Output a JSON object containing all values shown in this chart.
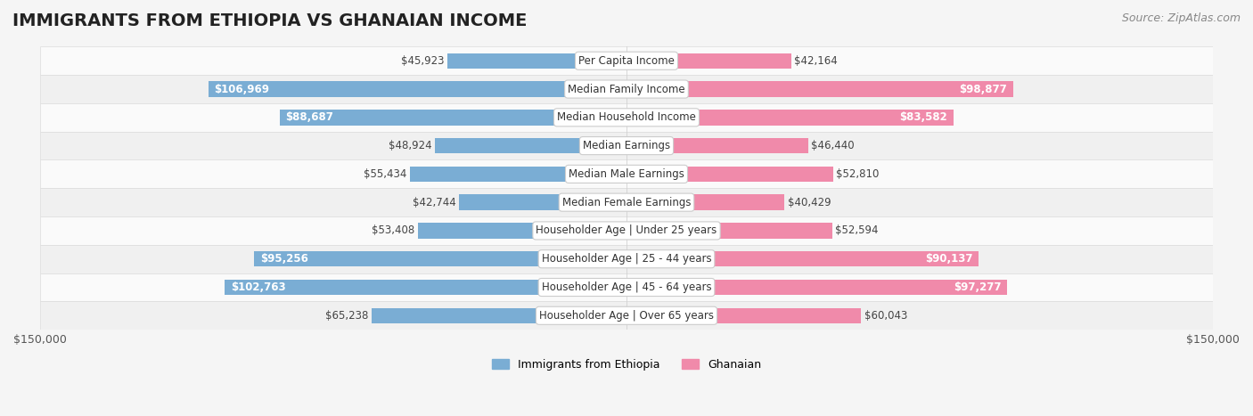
{
  "title": "IMMIGRANTS FROM ETHIOPIA VS GHANAIAN INCOME",
  "source": "Source: ZipAtlas.com",
  "categories": [
    "Per Capita Income",
    "Median Family Income",
    "Median Household Income",
    "Median Earnings",
    "Median Male Earnings",
    "Median Female Earnings",
    "Householder Age | Under 25 years",
    "Householder Age | 25 - 44 years",
    "Householder Age | 45 - 64 years",
    "Householder Age | Over 65 years"
  ],
  "ethiopia_values": [
    45923,
    106969,
    88687,
    48924,
    55434,
    42744,
    53408,
    95256,
    102763,
    65238
  ],
  "ghana_values": [
    42164,
    98877,
    83582,
    46440,
    52810,
    40429,
    52594,
    90137,
    97277,
    60043
  ],
  "ethiopia_color": "#7aadd4",
  "ghana_color": "#f08aaa",
  "ethiopia_color_dark": "#4a86c0",
  "ghana_color_dark": "#e85585",
  "bar_height": 0.55,
  "xlim": 150000,
  "xlabel_left": "$150,000",
  "xlabel_right": "$150,000",
  "background_color": "#f5f5f5",
  "row_bg_light": "#fafafa",
  "row_bg_dark": "#f0f0f0",
  "label_bg_color": "#ffffff",
  "label_border_color": "#cccccc",
  "title_fontsize": 14,
  "source_fontsize": 9,
  "tick_fontsize": 9,
  "value_fontsize": 8.5,
  "category_fontsize": 8.5
}
